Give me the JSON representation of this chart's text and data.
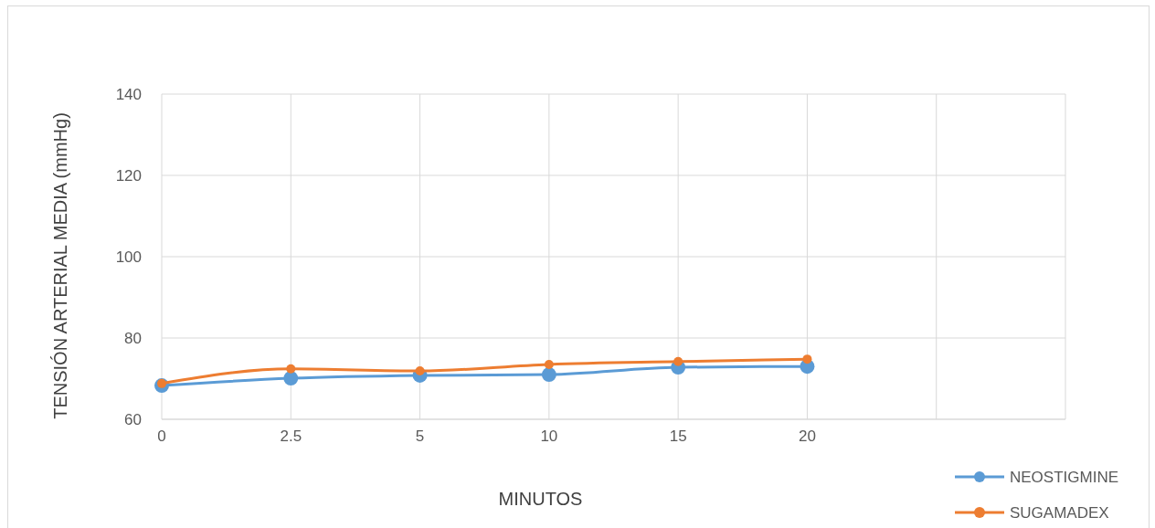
{
  "chart_data": {
    "type": "line",
    "xlabel": "MINUTOS",
    "ylabel": "TENSIÓN ARTERIAL MEDIA (mmHg)",
    "categories": [
      "0",
      "2.5",
      "5",
      "10",
      "15",
      "20",
      null
    ],
    "series": [
      {
        "name": "NEOSTIGMINE",
        "color": "#5b9bd5",
        "values": [
          68.3,
          70.1,
          70.8,
          71.0,
          72.8,
          73.0,
          null
        ]
      },
      {
        "name": "SUGAMADEX",
        "color": "#ed7d31",
        "values": [
          68.8,
          72.4,
          71.9,
          73.5,
          74.2,
          74.8,
          null
        ]
      }
    ],
    "ylim": [
      60,
      140
    ],
    "yticks": [
      60,
      80,
      100,
      120,
      140
    ],
    "grid": true,
    "legend": "bottom right",
    "marker": "circle",
    "line_style": "solid"
  }
}
